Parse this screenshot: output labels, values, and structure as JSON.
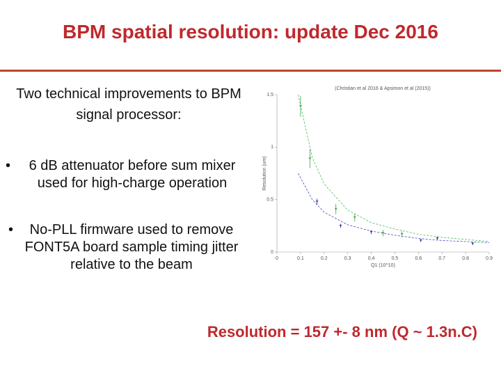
{
  "title": "BPM spatial resolution: update Dec 2016",
  "intro": "Two technical improvements to BPM signal processor:",
  "bullets": [
    "6 dB attenuator before sum mixer used for high-charge operation",
    "No-PLL firmware used to remove FONT5A board sample timing jitter relative to the beam"
  ],
  "result": "Resolution = 157 +- 8 nm (Q ~ 1.3n.C)",
  "chart_data": {
    "type": "scatter",
    "title": "(Christian et al 2016 & Apsimon et al (2015))",
    "xlabel": "Q1 (10^10)",
    "ylabel": "Resolution (um)",
    "xlim": [
      0,
      0.9
    ],
    "xticks": [
      0,
      0.1,
      0.2,
      0.3,
      0.4,
      0.5,
      0.6,
      0.7,
      0.8,
      0.9
    ],
    "ylim": [
      0,
      1.5
    ],
    "yticks": [
      0,
      0.5,
      1,
      1.5
    ],
    "series": [
      {
        "color": "#3fa34d",
        "x": [
          0.1,
          0.14,
          0.25,
          0.33,
          0.45,
          0.53
        ],
        "values": [
          1.39,
          0.89,
          0.41,
          0.33,
          0.18,
          0.17
        ],
        "errors": [
          0.1,
          0.09,
          0.05,
          0.04,
          0.03,
          0.03
        ]
      },
      {
        "color": "#3a3aa8",
        "x": [
          0.17,
          0.27,
          0.4,
          0.61,
          0.68,
          0.83
        ],
        "values": [
          0.48,
          0.25,
          0.19,
          0.11,
          0.13,
          0.08
        ],
        "errors": [
          0.03,
          0.02,
          0.02,
          0.015,
          0.015,
          0.015
        ]
      }
    ],
    "fits": [
      {
        "color": "#5fc36a",
        "x": [
          0.09,
          0.15,
          0.2,
          0.3,
          0.4,
          0.5,
          0.6,
          0.7,
          0.8,
          0.9
        ],
        "values": [
          1.5,
          0.9,
          0.65,
          0.4,
          0.28,
          0.22,
          0.17,
          0.14,
          0.12,
          0.1
        ]
      },
      {
        "color": "#5a5ac8",
        "x": [
          0.09,
          0.15,
          0.2,
          0.3,
          0.4,
          0.5,
          0.6,
          0.7,
          0.8,
          0.9
        ],
        "values": [
          0.75,
          0.5,
          0.38,
          0.26,
          0.2,
          0.16,
          0.13,
          0.11,
          0.1,
          0.09
        ]
      }
    ]
  }
}
